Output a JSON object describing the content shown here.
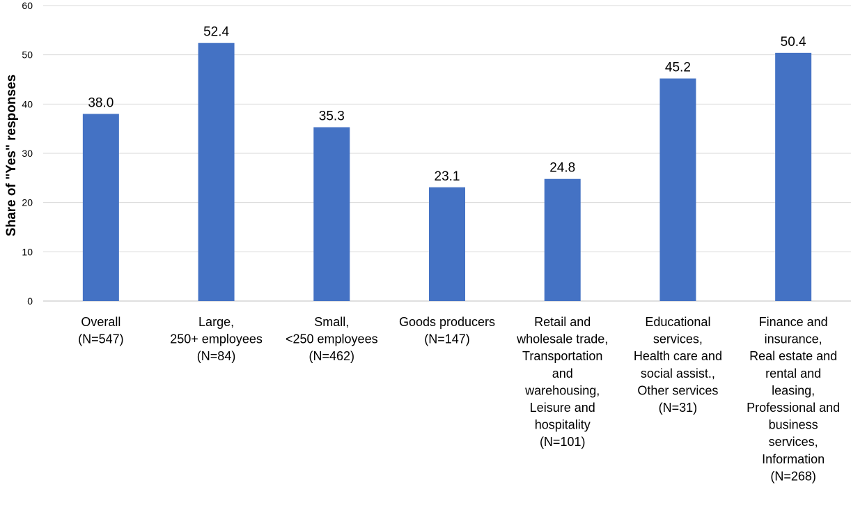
{
  "chart_data": {
    "type": "bar",
    "title": "",
    "xlabel": "",
    "ylabel": "Share of \"Yes\" responses",
    "ylim": [
      0,
      60
    ],
    "yticks": [
      0,
      10,
      20,
      30,
      40,
      50,
      60
    ],
    "grid": true,
    "bar_color": "#4472C4",
    "categories": [
      [
        "Overall",
        "(N=547)"
      ],
      [
        "Large,",
        "250+ employees",
        "(N=84)"
      ],
      [
        "Small,",
        "<250 employees",
        "(N=462)"
      ],
      [
        "Goods producers",
        "(N=147)"
      ],
      [
        "Retail and",
        "wholesale trade,",
        "Transportation",
        "and",
        "warehousing,",
        "Leisure and",
        "hospitality",
        "(N=101)"
      ],
      [
        "Educational",
        "services,",
        "Health care and",
        "social assist.,",
        "Other services",
        "(N=31)"
      ],
      [
        "Finance and",
        "insurance,",
        "Real estate and",
        "rental and",
        "leasing,",
        "Professional and",
        "business",
        "services,",
        "Information",
        "(N=268)"
      ]
    ],
    "values": [
      38.0,
      52.4,
      35.3,
      23.1,
      24.8,
      45.2,
      50.4
    ],
    "value_labels": [
      "38.0",
      "52.4",
      "35.3",
      "23.1",
      "24.8",
      "45.2",
      "50.4"
    ]
  }
}
